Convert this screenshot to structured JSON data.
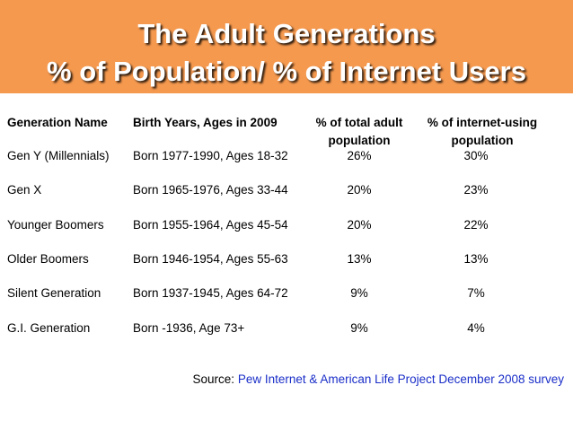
{
  "title": {
    "line1": "The Adult Generations",
    "line2": "% of Population/ % of Internet Users"
  },
  "table": {
    "headers": [
      {
        "line1": "Generation Name",
        "line2": ""
      },
      {
        "line1": "Birth Years, Ages in 2009",
        "line2": ""
      },
      {
        "line1": "% of total adult",
        "line2": "population"
      },
      {
        "line1": "% of internet-using",
        "line2": "population"
      }
    ],
    "rows": [
      [
        "Gen Y (Millennials)",
        "Born 1977-1990, Ages 18-32",
        "26%",
        "30%"
      ],
      [
        "Gen X",
        "Born 1965-1976, Ages 33-44",
        "20%",
        "23%"
      ],
      [
        "Younger Boomers",
        "Born 1955-1964, Ages 45-54",
        "20%",
        "22%"
      ],
      [
        "Older Boomers",
        "Born 1946-1954, Ages 55-63",
        "13%",
        "13%"
      ],
      [
        "Silent Generation",
        "Born 1937-1945, Ages 64-72",
        "9%",
        "7%"
      ],
      [
        "G.I. Generation",
        "Born -1936, Age 73+",
        "9%",
        "4%"
      ]
    ]
  },
  "source": {
    "label": "Source: ",
    "link_text": "Pew Internet & American Life Project December 2008 survey"
  },
  "colors": {
    "title_bar": "#f5994f",
    "link": "#1a2ec8"
  }
}
